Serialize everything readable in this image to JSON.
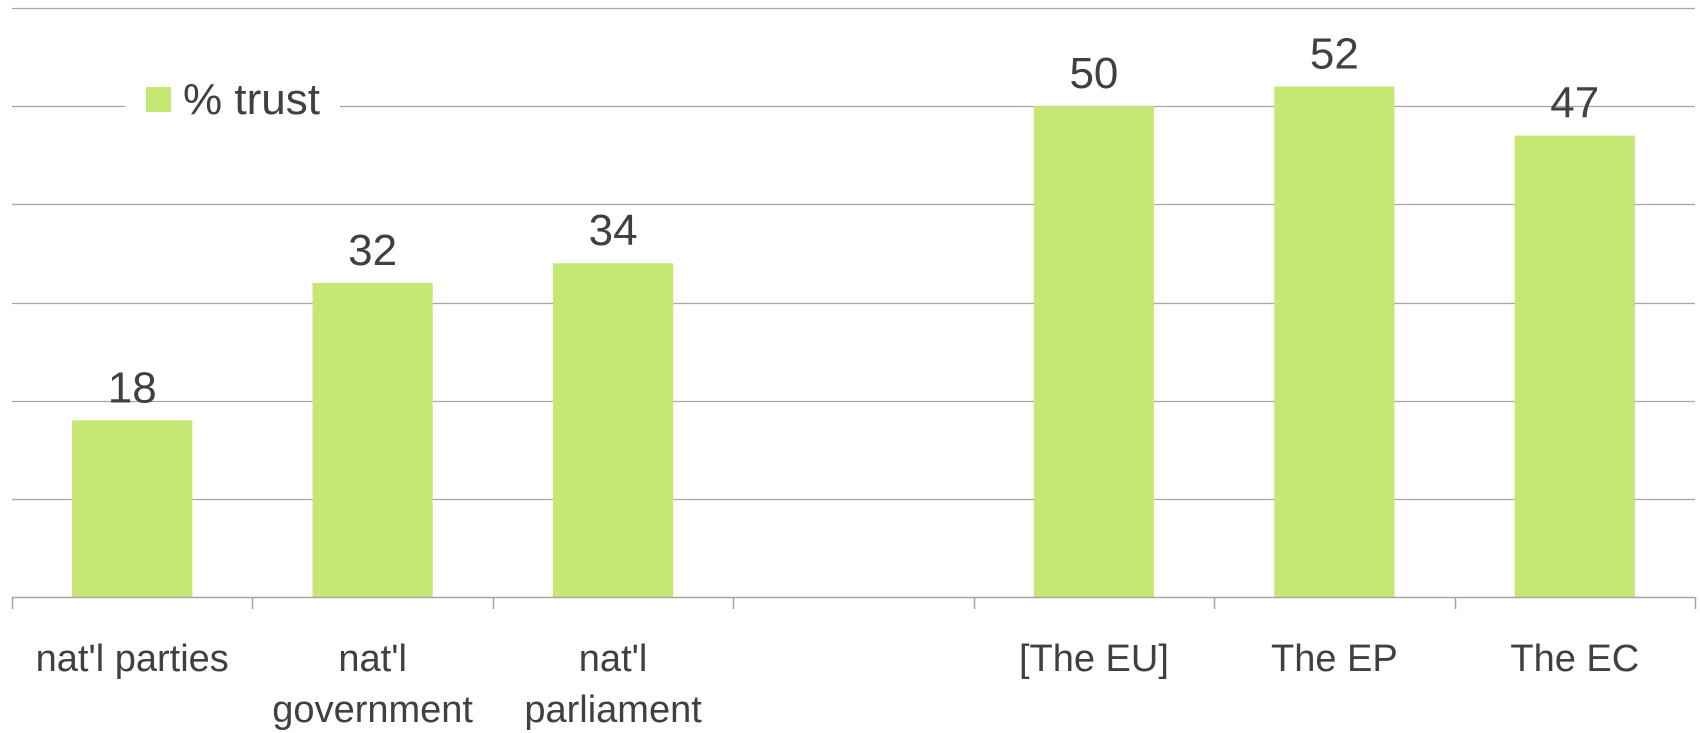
{
  "chart_data": {
    "type": "bar",
    "categories": [
      [
        "nat'l parties"
      ],
      [
        "nat'l",
        "government"
      ],
      [
        "nat'l",
        "parliament"
      ],
      [
        ""
      ],
      [
        "[The EU]"
      ],
      [
        "The EP"
      ],
      [
        "The EC"
      ]
    ],
    "series": [
      {
        "name": "% trust",
        "values": [
          18,
          32,
          34,
          null,
          50,
          52,
          47
        ]
      }
    ],
    "data_labels": [
      "18",
      "32",
      "34",
      "",
      "50",
      "52",
      "47"
    ],
    "ylim": [
      0,
      60
    ],
    "ytick_step": 10,
    "grid": true,
    "legend_position": "top-left",
    "xlabel": "",
    "ylabel": "",
    "title": "",
    "colors": {
      "bar": "#c5e773",
      "grid": "#a6a6a6",
      "axis": "#a6a6a6",
      "text": "#404040"
    }
  }
}
